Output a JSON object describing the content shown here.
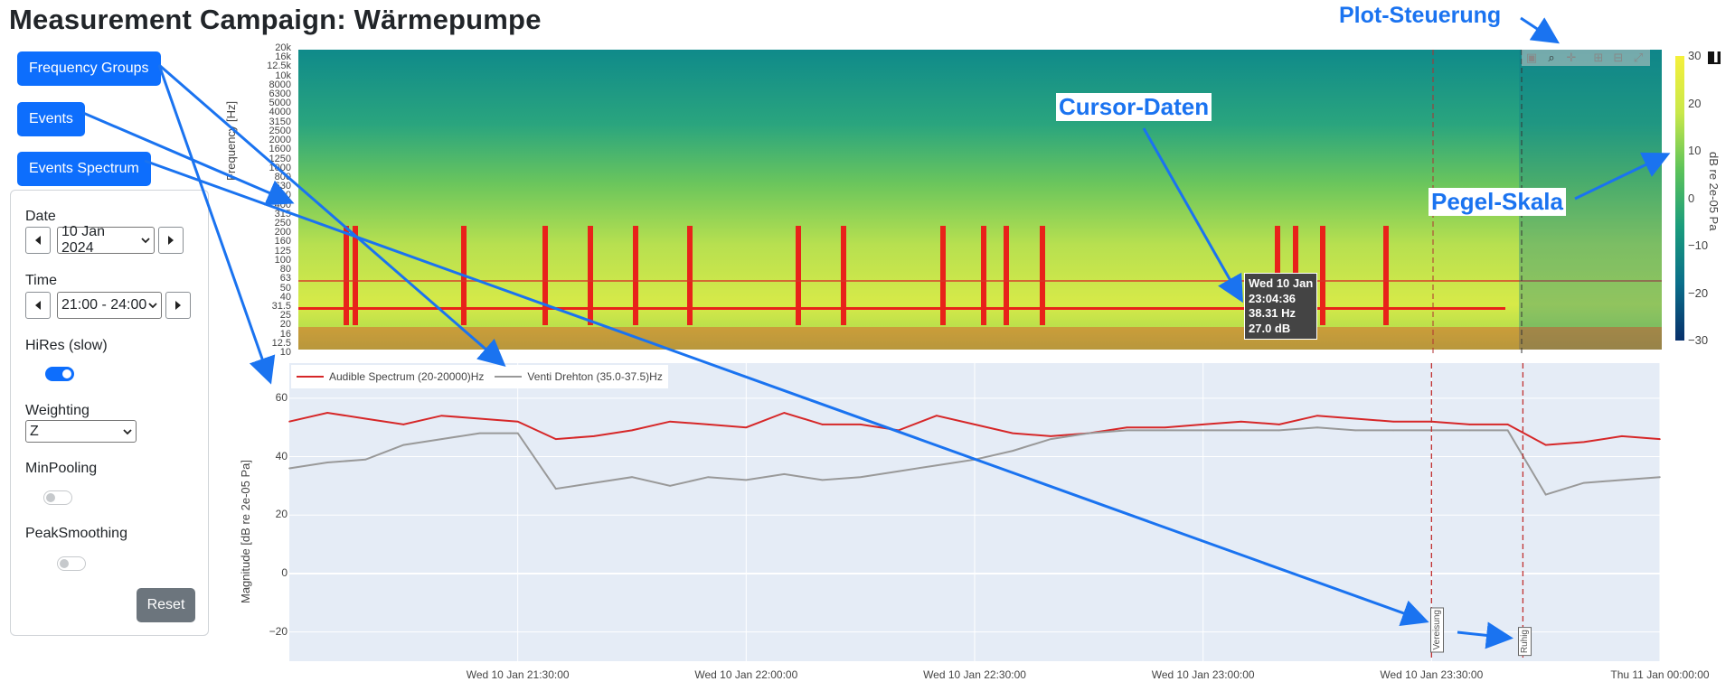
{
  "page_title": "Measurement Campaign: Wärmepumpe",
  "buttons": {
    "frequency_groups": "Frequency Groups",
    "events": "Events",
    "events_spectrum": "Events Spectrum",
    "reset": "Reset"
  },
  "controls": {
    "date_label": "Date",
    "date_value": "10 Jan 2024",
    "time_label": "Time",
    "time_value": "21:00 - 24:00",
    "hires_label": "HiRes (slow)",
    "hires_on": true,
    "weighting_label": "Weighting",
    "weighting_value": "Z",
    "minpooling_label": "MinPooling",
    "minpooling_on": false,
    "peaksmoothing_label": "PeakSmoothing",
    "peaksmoothing_on": false
  },
  "annotations": {
    "plot_control": "Plot-Steuerung",
    "cursor_data": "Cursor-Daten",
    "level_scale": "Pegel-Skala"
  },
  "tooltip": {
    "line1": "Wed 10 Jan",
    "line2": "23:04:36",
    "line3": "38.31 Hz",
    "line4": "27.0 dB"
  },
  "spectrogram": {
    "ylabel": "Frequency [Hz]",
    "yticks": [
      "20k",
      "16k",
      "12.5k",
      "10k",
      "8000",
      "6300",
      "5000",
      "4000",
      "3150",
      "2500",
      "2000",
      "1600",
      "1250",
      "1000",
      "800",
      "630",
      "500",
      "400",
      "315",
      "250",
      "200",
      "160",
      "125",
      "100",
      "80",
      "63",
      "50",
      "40",
      "31.5",
      "25",
      "20",
      "16",
      "12.5",
      "10"
    ],
    "colorbar_title": "dB re 2e-05 Pa",
    "colorbar_ticks": [
      "30",
      "20",
      "10",
      "0",
      "−10",
      "−20",
      "−30"
    ],
    "colorscale": [
      "#08306b",
      "#0a6e8a",
      "#1a9c7c",
      "#5cc35a",
      "#c9e84a",
      "#f5f03c"
    ]
  },
  "chart_data": {
    "type": "line",
    "ylabel": "Magnitude [dB re 2e-05 Pa]",
    "ylim": [
      -30,
      72
    ],
    "yticks": [
      "60",
      "40",
      "20",
      "0",
      "−20"
    ],
    "xlim": [
      "2024-01-10 21:00",
      "2024-01-11 00:00"
    ],
    "xticks": [
      "Wed 10 Jan 21:30:00",
      "Wed 10 Jan 22:00:00",
      "Wed 10 Jan 22:30:00",
      "Wed 10 Jan 23:00:00",
      "Wed 10 Jan 23:30:00",
      "Thu 11 Jan 00:00:00"
    ],
    "x": [
      "21:00",
      "21:05",
      "21:10",
      "21:15",
      "21:20",
      "21:25",
      "21:30",
      "21:35",
      "21:40",
      "21:45",
      "21:50",
      "21:55",
      "22:00",
      "22:05",
      "22:10",
      "22:15",
      "22:20",
      "22:25",
      "22:30",
      "22:35",
      "22:40",
      "22:45",
      "22:50",
      "22:55",
      "23:00",
      "23:05",
      "23:10",
      "23:15",
      "23:20",
      "23:25",
      "23:30",
      "23:35",
      "23:40",
      "23:45",
      "23:50",
      "23:55",
      "24:00"
    ],
    "series": [
      {
        "name": "Audible Spectrum (20-20000)Hz",
        "color": "#d62728",
        "values": [
          52,
          55,
          53,
          51,
          54,
          53,
          52,
          46,
          47,
          49,
          52,
          51,
          50,
          55,
          51,
          51,
          49,
          54,
          51,
          48,
          47,
          48,
          50,
          50,
          51,
          52,
          51,
          54,
          53,
          52,
          52,
          51,
          51,
          44,
          45,
          47,
          46
        ]
      },
      {
        "name": "Venti Drehton (35.0-37.5)Hz",
        "color": "#999999",
        "values": [
          36,
          38,
          39,
          44,
          46,
          48,
          48,
          29,
          31,
          33,
          30,
          33,
          32,
          34,
          32,
          33,
          35,
          37,
          39,
          42,
          46,
          48,
          49,
          49,
          49,
          49,
          49,
          50,
          49,
          49,
          49,
          49,
          49,
          27,
          31,
          32,
          33
        ]
      }
    ],
    "events": [
      "Vereisung",
      "Ruhig"
    ],
    "event_times": [
      "23:30",
      "23:42"
    ]
  }
}
